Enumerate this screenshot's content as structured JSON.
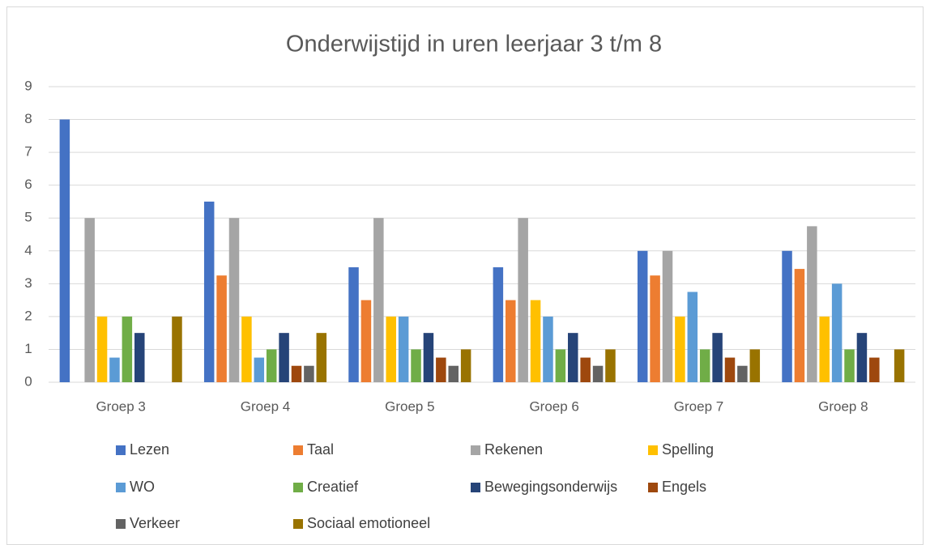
{
  "chart_data": {
    "type": "bar",
    "title": "Onderwijstijd in uren leerjaar 3 t/m 8",
    "categories": [
      "Groep 3",
      "Groep 4",
      "Groep 5",
      "Groep 6",
      "Groep 7",
      "Groep 8"
    ],
    "series": [
      {
        "name": "Lezen",
        "color": "#4472c4",
        "values": [
          8,
          5.5,
          3.5,
          3.5,
          4,
          4
        ]
      },
      {
        "name": "Taal",
        "color": "#ed7d31",
        "values": [
          0,
          3.25,
          2.5,
          2.5,
          3.25,
          3.45
        ]
      },
      {
        "name": "Rekenen",
        "color": "#a5a5a5",
        "values": [
          5,
          5,
          5,
          5,
          4,
          4.75
        ]
      },
      {
        "name": "Spelling",
        "color": "#ffc000",
        "values": [
          2,
          2,
          2,
          2.5,
          2,
          2
        ]
      },
      {
        "name": "WO",
        "color": "#5b9bd5",
        "values": [
          0.75,
          0.75,
          2,
          2,
          2.75,
          3
        ]
      },
      {
        "name": "Creatief",
        "color": "#70ad47",
        "values": [
          2,
          1,
          1,
          1,
          1,
          1
        ]
      },
      {
        "name": "Bewegingsonderwijs",
        "color": "#264478",
        "values": [
          1.5,
          1.5,
          1.5,
          1.5,
          1.5,
          1.5
        ]
      },
      {
        "name": "Engels",
        "color": "#9e480e",
        "values": [
          0,
          0.5,
          0.75,
          0.75,
          0.75,
          0.75
        ]
      },
      {
        "name": "Verkeer",
        "color": "#636363",
        "values": [
          0,
          0.5,
          0.5,
          0.5,
          0.5,
          0
        ]
      },
      {
        "name": "Sociaal emotioneel",
        "color": "#997300",
        "values": [
          2,
          1.5,
          1,
          1,
          1,
          1
        ]
      }
    ],
    "ylim": [
      0,
      9
    ],
    "yticks": [
      0,
      1,
      2,
      3,
      4,
      5,
      6,
      7,
      8,
      9
    ],
    "grid": true,
    "legend": "bottom"
  }
}
